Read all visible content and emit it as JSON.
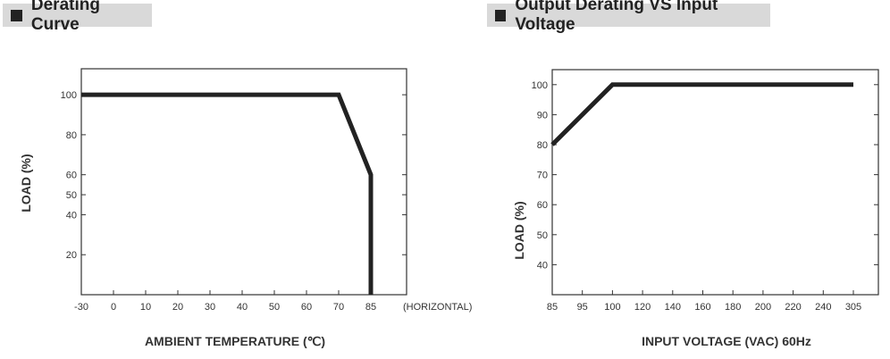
{
  "chart_data": [
    {
      "type": "line",
      "title": "Derating Curve",
      "xlabel": "AMBIENT TEMPERATURE (℃)",
      "ylabel": "LOAD (%)",
      "x_ticks": [
        "-30",
        "0",
        "10",
        "20",
        "30",
        "40",
        "50",
        "60",
        "70",
        "85"
      ],
      "x_note": "(HORIZONTAL)",
      "y_ticks": [
        100,
        80,
        60,
        50,
        40,
        20
      ],
      "ylim": [
        0,
        113
      ],
      "series": [
        {
          "name": "load",
          "x": [
            -30,
            70,
            85,
            85
          ],
          "y": [
            100,
            100,
            60,
            0
          ]
        }
      ]
    },
    {
      "type": "line",
      "title": "Output Derating VS Input Voltage",
      "xlabel": "INPUT VOLTAGE (VAC) 60Hz",
      "ylabel": "LOAD (%)",
      "x_ticks": [
        "85",
        "95",
        "100",
        "120",
        "140",
        "160",
        "180",
        "200",
        "220",
        "240",
        "305"
      ],
      "y_ticks": [
        100,
        90,
        80,
        70,
        60,
        50,
        40
      ],
      "ylim": [
        30,
        105
      ],
      "series": [
        {
          "name": "load",
          "x": [
            85,
            100,
            305
          ],
          "y": [
            80,
            100,
            100
          ]
        }
      ]
    }
  ]
}
